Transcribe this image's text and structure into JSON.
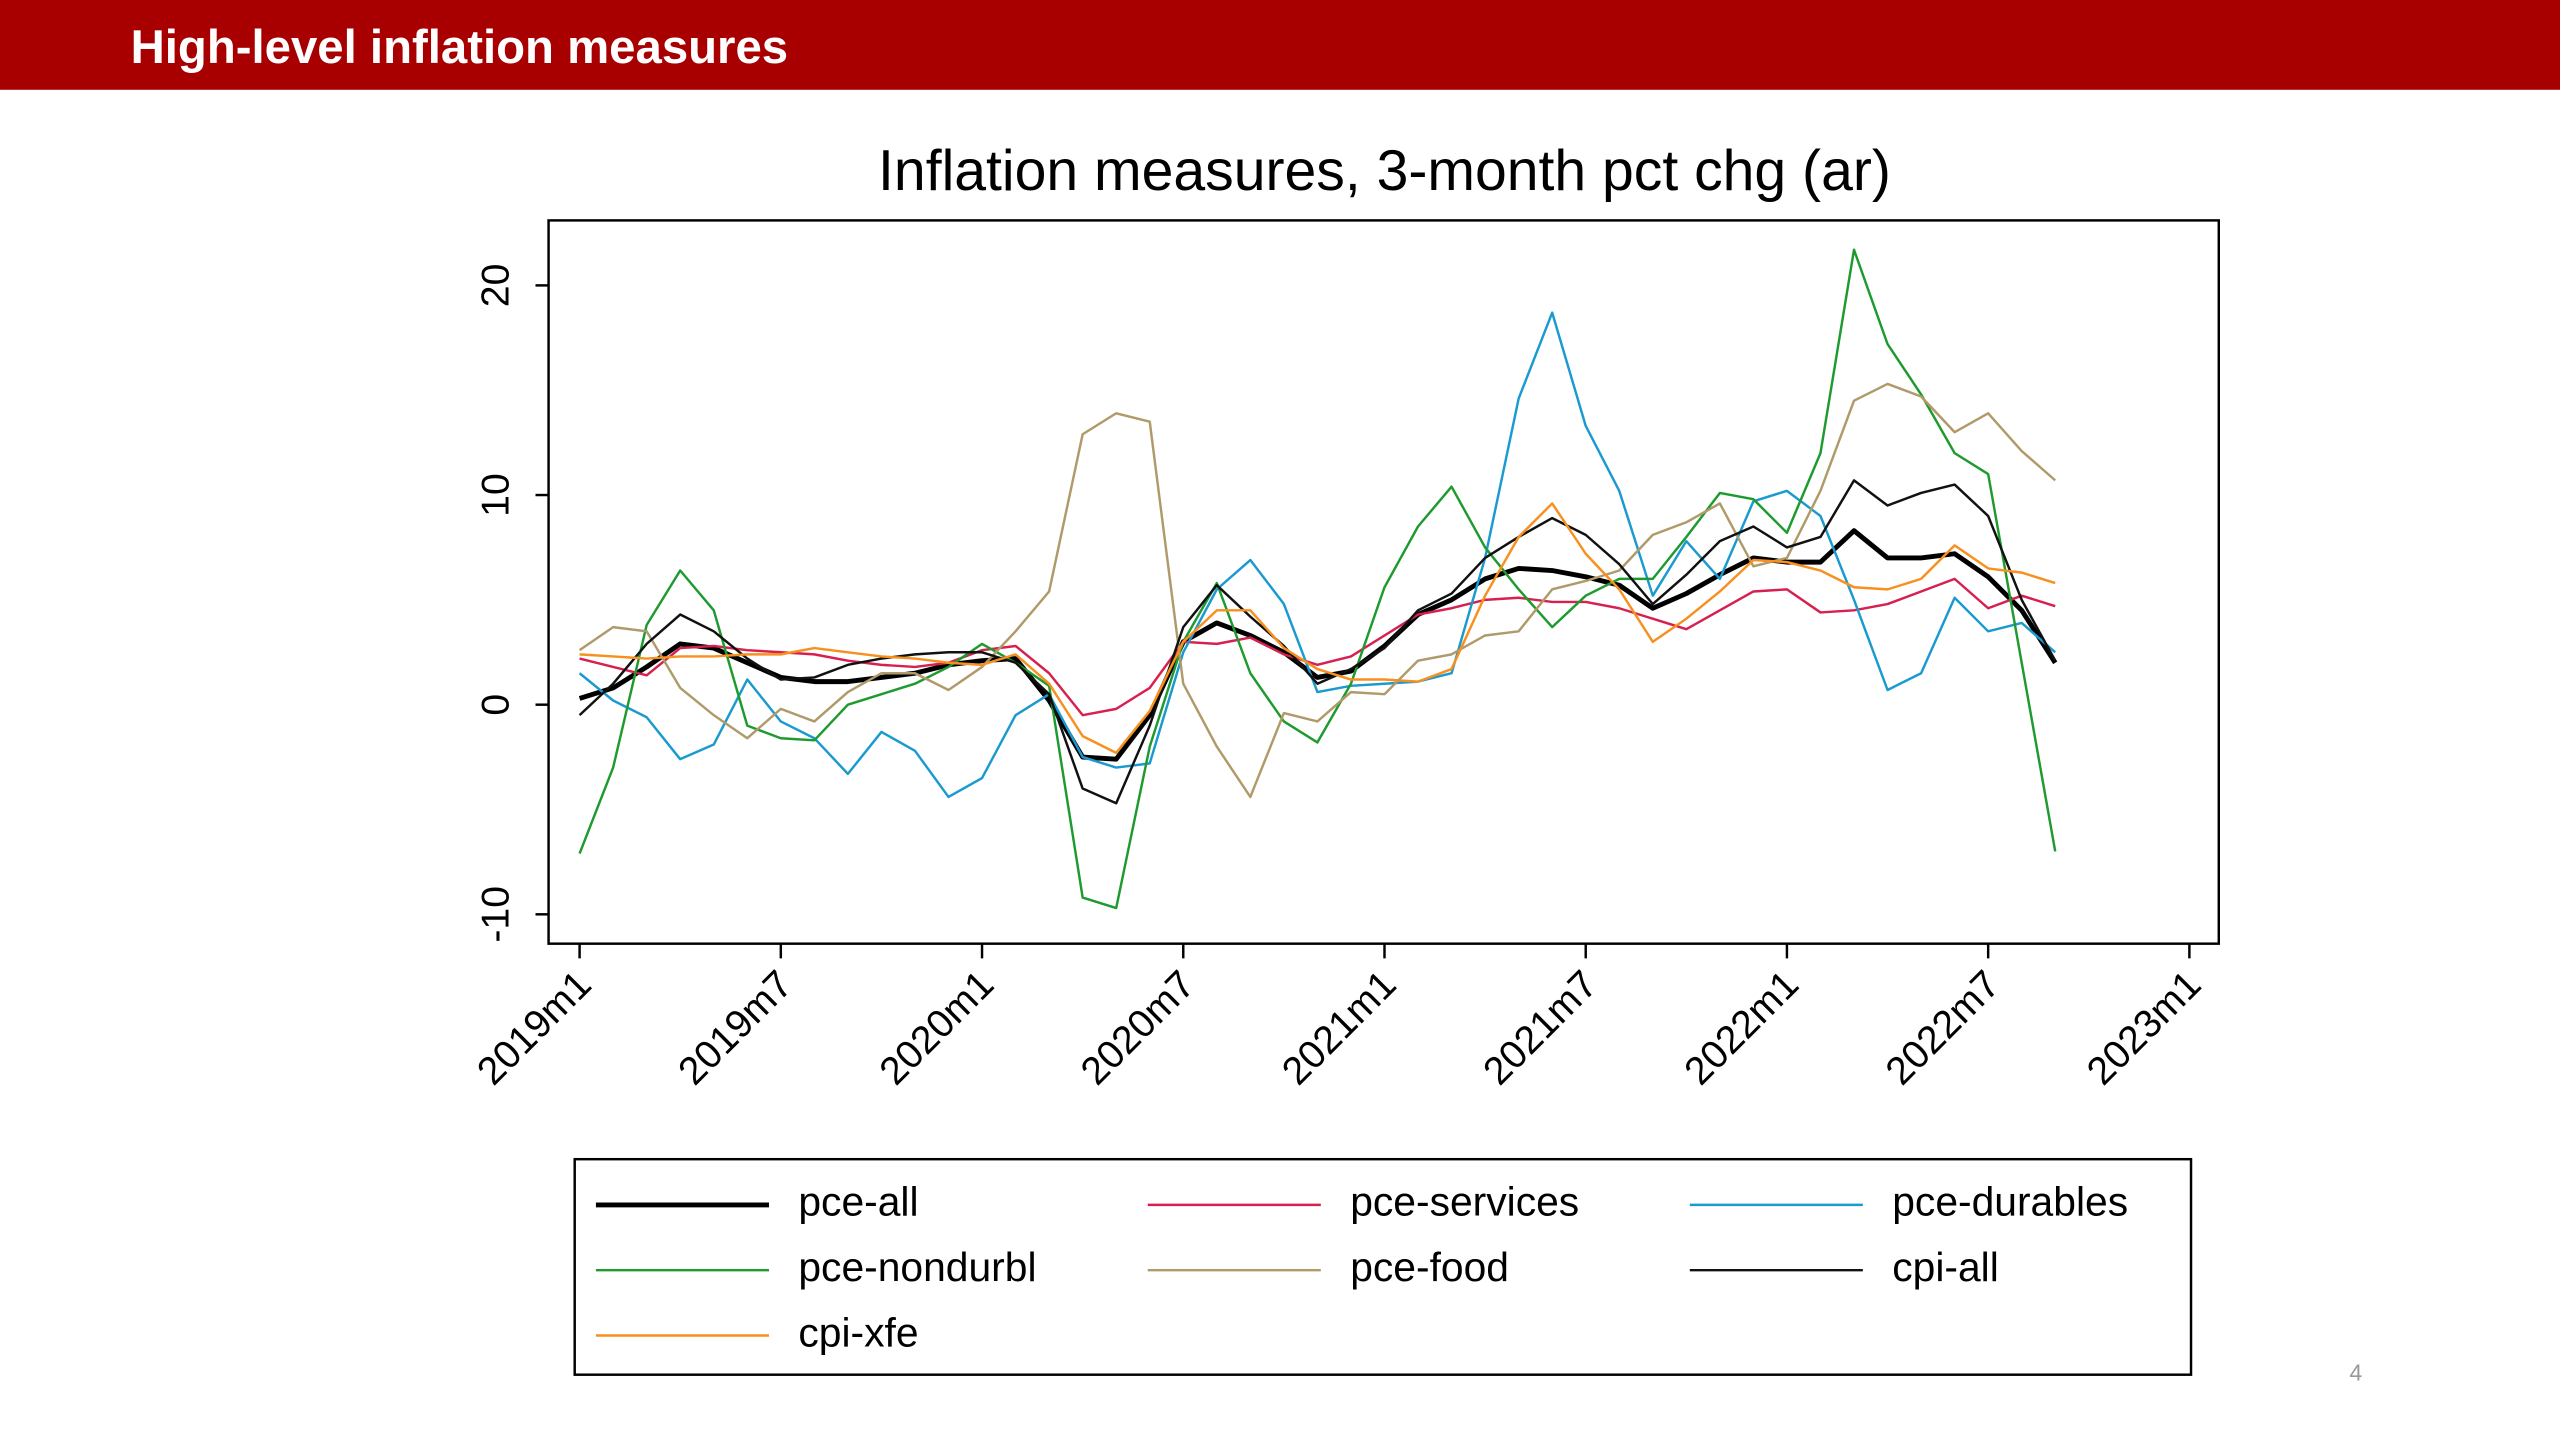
{
  "header": {
    "title": "High-level inflation measures"
  },
  "page_number": "4",
  "chart_data": {
    "type": "line",
    "title": "Inflation measures, 3-month pct chg (ar)",
    "x": [
      "2019m1",
      "2019m2",
      "2019m3",
      "2019m4",
      "2019m5",
      "2019m6",
      "2019m7",
      "2019m8",
      "2019m9",
      "2019m10",
      "2019m11",
      "2019m12",
      "2020m1",
      "2020m2",
      "2020m3",
      "2020m4",
      "2020m5",
      "2020m6",
      "2020m7",
      "2020m8",
      "2020m9",
      "2020m10",
      "2020m11",
      "2020m12",
      "2021m1",
      "2021m2",
      "2021m3",
      "2021m4",
      "2021m5",
      "2021m6",
      "2021m7",
      "2021m8",
      "2021m9",
      "2021m10",
      "2021m11",
      "2021m12",
      "2022m1",
      "2022m2",
      "2022m3",
      "2022m4",
      "2022m5",
      "2022m6",
      "2022m7",
      "2022m8",
      "2022m9"
    ],
    "xlim": [
      "2019m1",
      "2023m1"
    ],
    "xticks": [
      "2019m1",
      "2019m7",
      "2020m1",
      "2020m7",
      "2021m1",
      "2021m7",
      "2022m1",
      "2022m7",
      "2023m1"
    ],
    "ylim": [
      -11.4,
      23.1
    ],
    "yticks": [
      -10,
      0,
      10,
      20
    ],
    "legend": "bottom",
    "series": [
      {
        "name": "pce-all",
        "color": "#000000",
        "width": 3,
        "values": [
          0.3,
          0.8,
          1.8,
          2.9,
          2.7,
          2.0,
          1.3,
          1.1,
          1.1,
          1.3,
          1.5,
          1.9,
          2.1,
          2.2,
          0.2,
          -2.5,
          -2.6,
          -0.5,
          3.0,
          3.9,
          3.3,
          2.5,
          1.3,
          1.6,
          2.8,
          4.3,
          5.0,
          6.0,
          6.5,
          6.4,
          6.1,
          5.7,
          4.6,
          5.3,
          6.2,
          7.0,
          6.8,
          6.8,
          8.3,
          7.0,
          7.0,
          7.2,
          6.1,
          4.5,
          2.0
        ]
      },
      {
        "name": "pce-services",
        "color": "#d6204f",
        "width": 1.5,
        "values": [
          2.2,
          1.8,
          1.4,
          2.7,
          2.8,
          2.6,
          2.5,
          2.4,
          2.1,
          1.9,
          1.8,
          2.0,
          2.6,
          2.8,
          1.5,
          -0.5,
          -0.2,
          0.8,
          3.0,
          2.9,
          3.2,
          2.4,
          1.9,
          2.3,
          3.3,
          4.3,
          4.6,
          5.0,
          5.1,
          4.9,
          4.9,
          4.6,
          4.1,
          3.6,
          4.5,
          5.4,
          5.5,
          4.4,
          4.5,
          4.8,
          5.4,
          6.0,
          4.6,
          5.2,
          4.7
        ]
      },
      {
        "name": "pce-durables",
        "color": "#1a9ad0",
        "width": 1.5,
        "values": [
          1.5,
          0.2,
          -0.6,
          -2.6,
          -1.9,
          1.2,
          -0.8,
          -1.6,
          -3.3,
          -1.3,
          -2.2,
          -4.4,
          -3.5,
          -0.5,
          0.5,
          -2.5,
          -3.0,
          -2.8,
          2.5,
          5.5,
          6.9,
          4.8,
          0.6,
          0.9,
          1.0,
          1.1,
          1.5,
          7.0,
          14.6,
          18.7,
          13.3,
          10.2,
          5.2,
          7.8,
          6.0,
          9.7,
          10.2,
          9.0,
          5.0,
          0.7,
          1.5,
          5.1,
          3.5,
          3.9,
          2.5
        ]
      },
      {
        "name": "pce-nondurbl",
        "color": "#1e9a2e",
        "width": 1.5,
        "values": [
          -7.1,
          -3.0,
          3.8,
          6.4,
          4.5,
          -1.0,
          -1.6,
          -1.7,
          0.0,
          0.5,
          1.0,
          1.8,
          2.9,
          2.0,
          0.9,
          -9.2,
          -9.7,
          -2.0,
          3.0,
          5.8,
          1.5,
          -0.8,
          -1.8,
          1.0,
          5.6,
          8.5,
          10.4,
          7.5,
          5.5,
          3.7,
          5.2,
          6.0,
          6.0,
          8.0,
          10.1,
          9.8,
          8.2,
          12.0,
          21.7,
          17.2,
          14.8,
          12.0,
          11.0,
          2.0,
          -7.0
        ]
      },
      {
        "name": "pce-food",
        "color": "#b09a6a",
        "width": 1.5,
        "values": [
          2.6,
          3.7,
          3.5,
          0.8,
          -0.5,
          -1.6,
          -0.2,
          -0.8,
          0.6,
          1.5,
          1.5,
          0.7,
          1.8,
          3.5,
          5.4,
          12.9,
          13.9,
          13.5,
          1.0,
          -2.0,
          -4.4,
          -0.4,
          -0.8,
          0.6,
          0.5,
          2.1,
          2.4,
          3.3,
          3.5,
          5.5,
          5.9,
          6.4,
          8.1,
          8.7,
          9.6,
          6.6,
          7.0,
          10.2,
          14.5,
          15.3,
          14.7,
          13.0,
          13.9,
          12.1,
          10.7
        ]
      },
      {
        "name": "cpi-all",
        "color": "#111111",
        "width": 1.5,
        "values": [
          -0.5,
          1.0,
          2.9,
          4.3,
          3.5,
          2.2,
          1.2,
          1.3,
          1.9,
          2.2,
          2.4,
          2.5,
          2.5,
          2.0,
          0.5,
          -4.0,
          -4.7,
          -1.0,
          3.7,
          5.7,
          4.2,
          2.8,
          1.0,
          1.7,
          2.7,
          4.5,
          5.3,
          7.0,
          8.0,
          8.9,
          8.1,
          6.7,
          4.8,
          6.2,
          7.8,
          8.5,
          7.5,
          8.0,
          10.7,
          9.5,
          10.1,
          10.5,
          9.0,
          5.0,
          2.1
        ]
      },
      {
        "name": "cpi-xfe",
        "color": "#f7901e",
        "width": 1.5,
        "values": [
          2.4,
          2.3,
          2.2,
          2.3,
          2.3,
          2.4,
          2.4,
          2.7,
          2.5,
          2.3,
          2.2,
          2.0,
          1.9,
          2.4,
          1.0,
          -1.5,
          -2.3,
          -0.3,
          3.0,
          4.5,
          4.5,
          2.7,
          1.7,
          1.2,
          1.2,
          1.1,
          1.7,
          5.2,
          8.0,
          9.6,
          7.2,
          5.5,
          3.0,
          4.1,
          5.4,
          6.9,
          6.8,
          6.4,
          5.6,
          5.5,
          6.0,
          7.6,
          6.5,
          6.3,
          5.8
        ]
      }
    ]
  }
}
